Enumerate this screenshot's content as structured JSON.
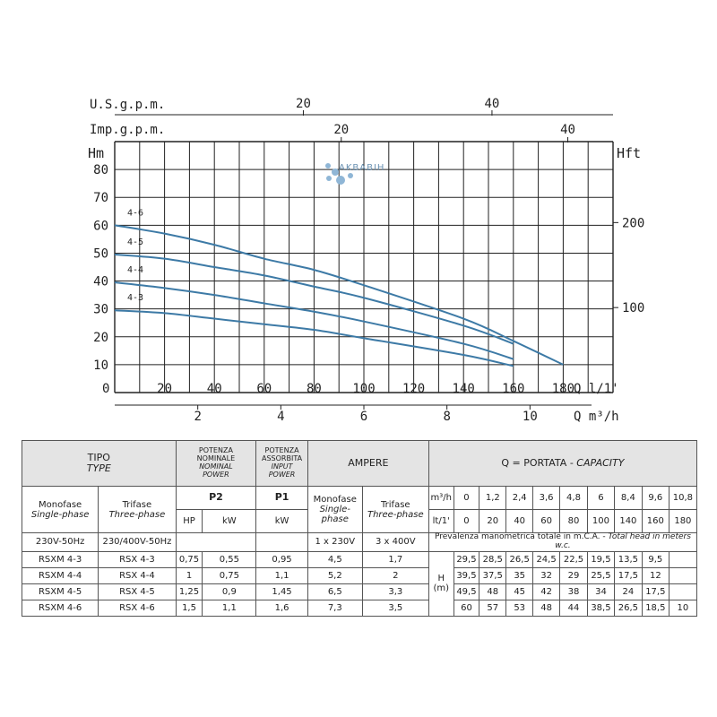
{
  "watermark": "AKBABIH",
  "colors": {
    "curve": "#3d7aa6",
    "grid": "#222222",
    "header_bg": "#e4e4e4"
  },
  "chart_data": {
    "type": "line",
    "x": [
      0,
      20,
      40,
      60,
      80,
      100,
      140,
      160,
      180
    ],
    "x_unit": "l/1'",
    "xlim": [
      0,
      200
    ],
    "ylim": [
      0,
      90
    ],
    "ylabel": "Hm",
    "y_ticks": [
      10,
      20,
      30,
      40,
      50,
      60,
      70,
      80
    ],
    "x_ticks": [
      0,
      20,
      40,
      60,
      80,
      100,
      120,
      140,
      160,
      180
    ],
    "x_axis_label": "Q l/1'",
    "secondary_x_axis": {
      "label": "Q m³/h",
      "ticks": [
        2,
        4,
        6,
        8,
        10
      ]
    },
    "top_axis_us": {
      "label": "U.S.g.p.m.",
      "ticks": [
        20,
        40
      ]
    },
    "top_axis_imp": {
      "label": "Imp.g.p.m.",
      "ticks": [
        20,
        40
      ]
    },
    "right_axis": {
      "label": "Hft",
      "ticks": [
        100,
        200
      ]
    },
    "grid": true,
    "series": [
      {
        "name": "4-3",
        "values": [
          29.5,
          28.5,
          26.5,
          24.5,
          22.5,
          19.5,
          13.5,
          9.5,
          null
        ]
      },
      {
        "name": "4-4",
        "values": [
          39.5,
          37.5,
          35,
          32,
          29,
          25.5,
          17.5,
          12,
          null
        ]
      },
      {
        "name": "4-5",
        "values": [
          49.5,
          48,
          45,
          42,
          38,
          34,
          24,
          17.5,
          null
        ]
      },
      {
        "name": "4-6",
        "values": [
          60,
          57,
          53,
          48,
          44,
          38.5,
          26.5,
          18.5,
          10
        ]
      }
    ]
  },
  "table": {
    "tipo": "TIPO",
    "type": "TYPE",
    "potenza_nominale": [
      "POTENZA",
      "NOMINALE",
      "NOMINAL",
      "POWER"
    ],
    "potenza_assorbita": [
      "POTENZA",
      "ASSORBITA",
      "INPUT",
      "POWER"
    ],
    "ampere": "AMPERE",
    "portata_it": "Q = PORTATA - ",
    "portata_en": "CAPACITY",
    "monofase": "Monofase",
    "single_phase": "Single-phase",
    "trifase": "Trifase",
    "three_phase": "Three-phase",
    "p2": "P2",
    "p1": "P1",
    "freq_mono": "230V-50Hz",
    "freq_tri": "230/400V-50Hz",
    "hp": "HP",
    "kw": "kW",
    "kw2": "kW",
    "volt_mono": "1 x 230V",
    "volt_tri": "3 x 400V",
    "m3h_label": "m³/h",
    "lt_label": "lt/1'",
    "m3h": [
      "0",
      "1,2",
      "2,4",
      "3,6",
      "4,8",
      "6",
      "8,4",
      "9,6",
      "10,8"
    ],
    "lt": [
      "0",
      "20",
      "40",
      "60",
      "80",
      "100",
      "140",
      "160",
      "180"
    ],
    "prevalenza": "Prevalenza manometrica totale in m.C.A. - ",
    "total_head": "Total head in meters w.c.",
    "h_label": "H",
    "h_unit": "(m)",
    "rows": [
      {
        "mono": "RSXM 4-3",
        "tri": "RSX 4-3",
        "hp": "0,75",
        "kw": "0,55",
        "p1": "0,95",
        "a1": "4,5",
        "a3": "1,7",
        "h": [
          "29,5",
          "28,5",
          "26,5",
          "24,5",
          "22,5",
          "19,5",
          "13,5",
          "9,5",
          ""
        ]
      },
      {
        "mono": "RSXM 4-4",
        "tri": "RSX 4-4",
        "hp": "1",
        "kw": "0,75",
        "p1": "1,1",
        "a1": "5,2",
        "a3": "2",
        "h": [
          "39,5",
          "37,5",
          "35",
          "32",
          "29",
          "25,5",
          "17,5",
          "12",
          ""
        ]
      },
      {
        "mono": "RSXM 4-5",
        "tri": "RSX 4-5",
        "hp": "1,25",
        "kw": "0,9",
        "p1": "1,45",
        "a1": "6,5",
        "a3": "3,3",
        "h": [
          "49,5",
          "48",
          "45",
          "42",
          "38",
          "34",
          "24",
          "17,5",
          ""
        ]
      },
      {
        "mono": "RSXM 4-6",
        "tri": "RSX 4-6",
        "hp": "1,5",
        "kw": "1,1",
        "p1": "1,6",
        "a1": "7,3",
        "a3": "3,5",
        "h": [
          "60",
          "57",
          "53",
          "48",
          "44",
          "38,5",
          "26,5",
          "18,5",
          "10"
        ]
      }
    ]
  }
}
